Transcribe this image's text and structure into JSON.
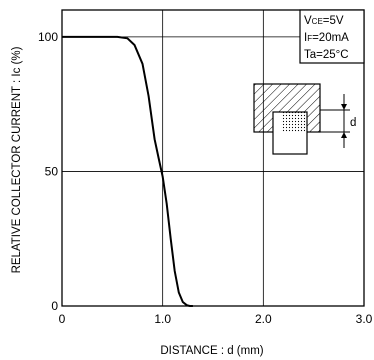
{
  "chart_data": {
    "type": "line",
    "title": "",
    "xlabel": "DISTANCE : d (mm)",
    "ylabel": "RELATIVE COLLECTOR CURRENT : Ic (%)",
    "xlim": [
      0,
      3.0
    ],
    "ylim": [
      0,
      110
    ],
    "x_ticks": [
      "0",
      "1.0",
      "2.0",
      "3.0"
    ],
    "y_ticks": [
      "0",
      "50",
      "100"
    ],
    "grid": true,
    "conditions": [
      {
        "main": "V",
        "sub": "CE",
        "rest": "=5V"
      },
      {
        "main": "I",
        "sub": "F",
        "rest": "=20mA"
      },
      {
        "main": "Ta=25°C",
        "sub": "",
        "rest": ""
      }
    ],
    "inset_label": "d",
    "series": [
      {
        "x": [
          0,
          0.55,
          0.65,
          0.72,
          0.8,
          0.86,
          0.92,
          0.96,
          1.0,
          1.04,
          1.08,
          1.12,
          1.16,
          1.2,
          1.24,
          1.27,
          1.3
        ],
        "y": [
          100,
          100,
          99.5,
          97,
          90,
          78,
          62,
          55,
          48,
          38,
          25,
          13,
          5,
          1.5,
          0.3,
          0,
          0
        ]
      }
    ]
  }
}
